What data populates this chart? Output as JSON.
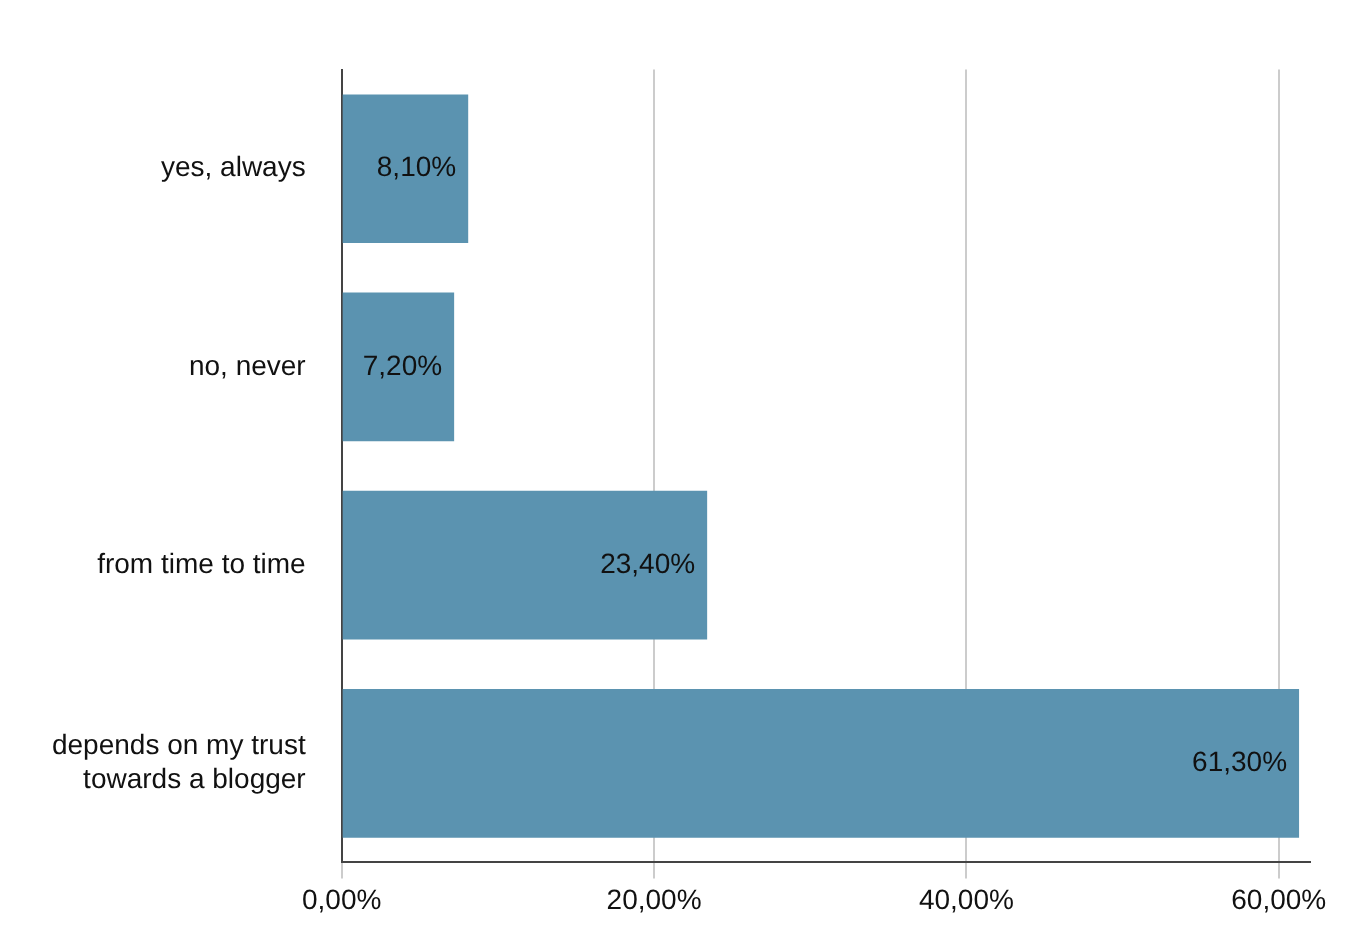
{
  "chart_data": {
    "type": "bar",
    "orientation": "horizontal",
    "categories": [
      "yes, always",
      "no, never",
      "from time to time",
      "depends on my trust towards a blogger"
    ],
    "series": [
      {
        "color": "#5b93b0",
        "values": [
          8.1,
          7.2,
          23.4,
          61.3
        ],
        "value_labels": [
          "8,10%",
          "7,20%",
          "23,40%",
          "61,30%"
        ]
      }
    ],
    "xlim": [
      0,
      62
    ],
    "xticks": [
      {
        "value": 0,
        "label": "0,00%"
      },
      {
        "value": 20,
        "label": "20,00%"
      },
      {
        "value": 40,
        "label": "40,00%"
      },
      {
        "value": 60,
        "label": "60,00%"
      }
    ],
    "grid": "x",
    "legend": false
  }
}
